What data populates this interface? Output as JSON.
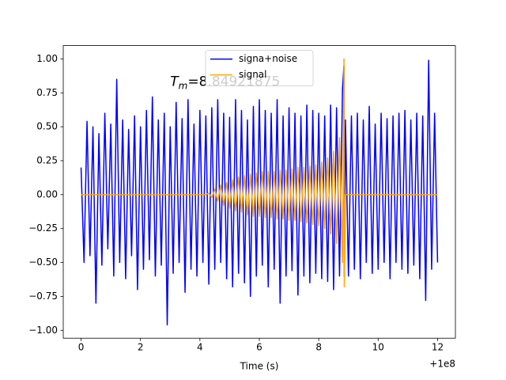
{
  "chart_data": {
    "type": "line",
    "xlabel": "Time (s)",
    "x_offset_label": "+1e8",
    "annotation": {
      "text": "T",
      "sub": "m",
      "rest": "=8.84921875",
      "x": 100000003.0,
      "y": 0.83
    },
    "legend": "upper center",
    "xlim": [
      99999999.4,
      100000012.6
    ],
    "ylim": [
      -1.058,
      1.098
    ],
    "xticks": [
      {
        "value": 100000000,
        "label": "0"
      },
      {
        "value": 100000002,
        "label": "2"
      },
      {
        "value": 100000004,
        "label": "4"
      },
      {
        "value": 100000006,
        "label": "6"
      },
      {
        "value": 100000008,
        "label": "8"
      },
      {
        "value": 100000010,
        "label": "10"
      },
      {
        "value": 100000012,
        "label": "12"
      }
    ],
    "yticks": [
      {
        "value": -1,
        "label": "−1.00"
      },
      {
        "value": -0.75,
        "label": "−0.75"
      },
      {
        "value": -0.5,
        "label": "−0.50"
      },
      {
        "value": -0.25,
        "label": "−0.25"
      },
      {
        "value": 0,
        "label": "0.00"
      },
      {
        "value": 0.25,
        "label": "0.25"
      },
      {
        "value": 0.5,
        "label": "0.50"
      },
      {
        "value": 0.75,
        "label": "0.75"
      },
      {
        "value": 1,
        "label": "1.00"
      }
    ],
    "x": [
      100000000.0,
      100000000.1,
      100000000.2,
      100000000.3,
      100000000.4,
      100000000.5,
      100000000.6,
      100000000.7,
      100000000.8,
      100000000.9,
      100000001.0,
      100000001.1,
      100000001.2,
      100000001.3,
      100000001.4,
      100000001.5,
      100000001.6,
      100000001.7,
      100000001.8,
      100000001.9,
      100000002.0,
      100000002.1,
      100000002.2,
      100000002.3,
      100000002.4,
      100000002.5,
      100000002.6,
      100000002.7,
      100000002.8,
      100000002.9,
      100000003.0,
      100000003.1,
      100000003.2,
      100000003.3,
      100000003.4,
      100000003.5,
      100000003.6,
      100000003.7,
      100000003.8,
      100000003.9,
      100000004.0,
      100000004.1,
      100000004.2,
      100000004.3,
      100000004.4,
      100000004.5,
      100000004.6,
      100000004.7,
      100000004.8,
      100000004.9,
      100000005.0,
      100000005.1,
      100000005.2,
      100000005.3,
      100000005.4,
      100000005.5,
      100000005.6,
      100000005.7,
      100000005.8,
      100000005.9,
      100000006.0,
      100000006.1,
      100000006.2,
      100000006.3,
      100000006.4,
      100000006.5,
      100000006.6,
      100000006.7,
      100000006.8,
      100000006.9,
      100000007.0,
      100000007.1,
      100000007.2,
      100000007.3,
      100000007.4,
      100000007.5,
      100000007.6,
      100000007.7,
      100000007.8,
      100000007.9,
      100000008.0,
      100000008.1,
      100000008.2,
      100000008.3,
      100000008.4,
      100000008.5,
      100000008.6,
      100000008.7,
      100000008.8,
      100000008.85,
      100000008.86,
      100000008.9,
      100000009.0,
      100000009.1,
      100000009.2,
      100000009.3,
      100000009.4,
      100000009.5,
      100000009.6,
      100000009.7,
      100000009.8,
      100000009.9,
      100000010.0,
      100000010.1,
      100000010.2,
      100000010.3,
      100000010.4,
      100000010.5,
      100000010.6,
      100000010.7,
      100000010.8,
      100000010.9,
      100000011.0,
      100000011.1,
      100000011.2,
      100000011.3,
      100000011.4,
      100000011.5,
      100000011.6,
      100000011.7,
      100000011.8,
      100000011.9,
      100000012.0
    ],
    "series": [
      {
        "name": "signa+noise",
        "color": "#0000ff",
        "values": [
          0.2,
          -0.5,
          0.54,
          -0.45,
          0.5,
          -0.8,
          0.45,
          -0.52,
          0.6,
          -0.4,
          0.52,
          -0.6,
          0.85,
          -0.5,
          0.55,
          -0.62,
          0.48,
          -0.45,
          0.58,
          -0.7,
          0.5,
          -0.55,
          0.62,
          -0.48,
          0.72,
          -0.6,
          0.55,
          -0.52,
          0.6,
          -0.96,
          0.5,
          -0.58,
          0.68,
          -0.5,
          0.56,
          -0.72,
          0.7,
          -0.55,
          0.52,
          -0.6,
          0.62,
          -0.5,
          0.58,
          -0.66,
          0.64,
          -0.55,
          0.7,
          -0.5,
          0.6,
          -0.62,
          0.57,
          -0.68,
          0.7,
          -0.58,
          0.62,
          -0.65,
          0.55,
          -0.75,
          0.65,
          -0.6,
          0.7,
          -0.52,
          0.62,
          -0.68,
          0.6,
          -0.55,
          0.7,
          -0.8,
          0.58,
          -0.6,
          0.64,
          -0.56,
          0.6,
          -0.74,
          0.58,
          -0.6,
          0.66,
          -0.65,
          0.62,
          -0.58,
          0.6,
          -0.62,
          0.58,
          -0.64,
          0.66,
          -0.7,
          0.64,
          -0.6,
          0.78,
          0.95,
          -0.6,
          0.55,
          -0.6,
          0.58,
          -0.55,
          0.6,
          -0.62,
          0.55,
          -0.5,
          0.65,
          -0.58,
          0.52,
          -0.55,
          0.6,
          -0.5,
          0.56,
          -0.62,
          0.58,
          -0.5,
          0.6,
          -0.55,
          0.62,
          -0.58,
          0.55,
          -0.52,
          0.6,
          -0.62,
          0.58,
          -0.78,
          0.99,
          -0.55,
          0.6,
          -0.5
        ]
      },
      {
        "name": "signal",
        "color": "#ffa500",
        "values": [
          0,
          0,
          0,
          0,
          0,
          0,
          0,
          0,
          0,
          0,
          0,
          0,
          0,
          0,
          0,
          0,
          0,
          0,
          0,
          0,
          0,
          0,
          0,
          0,
          0,
          0,
          0,
          0,
          0,
          0,
          0,
          0,
          0,
          0,
          0,
          0,
          0,
          0,
          0,
          0,
          0,
          0,
          0,
          0.01,
          -0.02,
          0.04,
          -0.05,
          0.07,
          -0.08,
          0.09,
          -0.1,
          0.11,
          -0.12,
          0.13,
          -0.13,
          0.14,
          -0.15,
          0.15,
          -0.16,
          0.16,
          -0.16,
          0.17,
          -0.17,
          0.17,
          -0.17,
          0.17,
          -0.18,
          0.18,
          -0.18,
          0.18,
          -0.19,
          0.19,
          -0.19,
          0.2,
          -0.2,
          0.2,
          -0.21,
          0.21,
          -0.22,
          0.22,
          -0.23,
          0.24,
          -0.25,
          0.27,
          -0.29,
          0.32,
          -0.36,
          0.42,
          -0.5,
          1.0,
          -0.68,
          0,
          0,
          0,
          0,
          0,
          0,
          0,
          0,
          0,
          0,
          0,
          0,
          0,
          0,
          0,
          0,
          0,
          0,
          0,
          0,
          0,
          0,
          0,
          0,
          0,
          0,
          0,
          0,
          0,
          0,
          0,
          0
        ]
      }
    ]
  }
}
